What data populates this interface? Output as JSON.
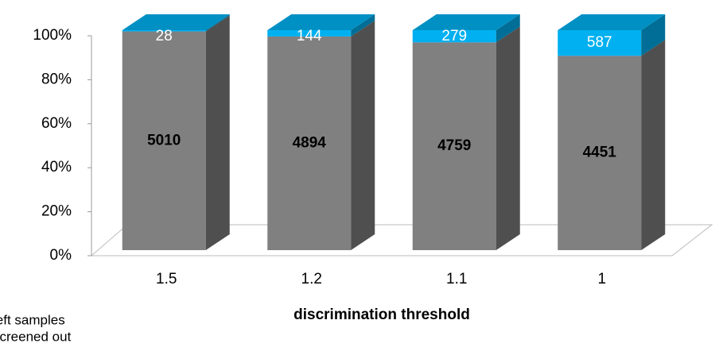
{
  "chart_data": {
    "type": "bar",
    "stacked": "percent",
    "x_label": "discrimination threshold",
    "categories": [
      "1.5",
      "1.2",
      "1.1",
      "1"
    ],
    "series": [
      {
        "name": "left samples",
        "color": "#808080",
        "values": [
          5010,
          4894,
          4759,
          4451
        ]
      },
      {
        "name": "screened out",
        "color": "#00b0f0",
        "values": [
          28,
          144,
          279,
          587
        ]
      }
    ],
    "ylim": [
      0,
      100
    ],
    "yticks": [
      {
        "value": 0,
        "label": "0%"
      },
      {
        "value": 20,
        "label": "20%"
      },
      {
        "value": 40,
        "label": "40%"
      },
      {
        "value": 60,
        "label": "60%"
      },
      {
        "value": 80,
        "label": "80%"
      },
      {
        "value": 100,
        "label": "100%"
      }
    ],
    "legend": "bottom-left"
  }
}
